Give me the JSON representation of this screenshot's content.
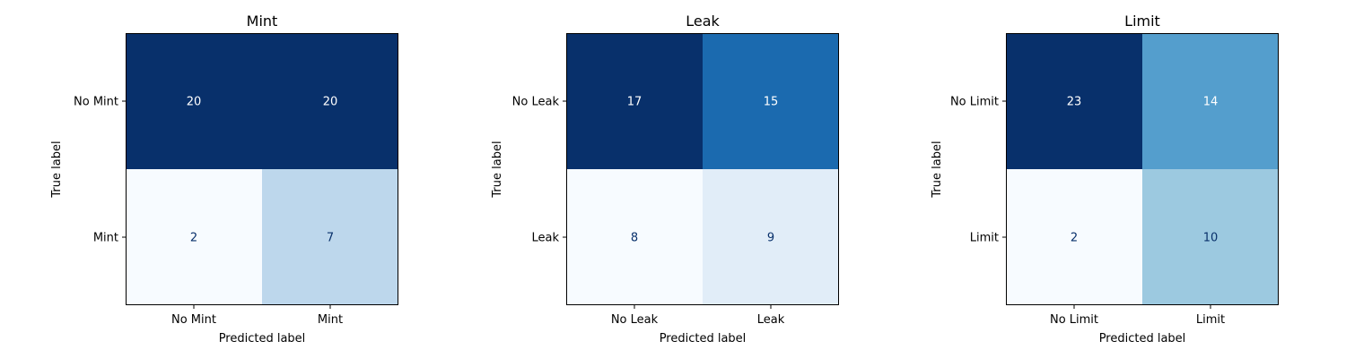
{
  "chart_data": [
    {
      "type": "heatmap",
      "title": "Mint",
      "xlabel": "Predicted label",
      "ylabel": "True label",
      "x_categories": [
        "No Mint",
        "Mint"
      ],
      "y_categories": [
        "No Mint",
        "Mint"
      ],
      "values": [
        [
          20,
          20
        ],
        [
          2,
          7
        ]
      ],
      "colormap": "Blues",
      "low_text_color": "#08306b",
      "high_text_color": "#ffffff"
    },
    {
      "type": "heatmap",
      "title": "Leak",
      "xlabel": "Predicted label",
      "ylabel": "True label",
      "x_categories": [
        "No Leak",
        "Leak"
      ],
      "y_categories": [
        "No Leak",
        "Leak"
      ],
      "values": [
        [
          17,
          15
        ],
        [
          8,
          9
        ]
      ],
      "colormap": "Blues",
      "low_text_color": "#08306b",
      "high_text_color": "#ffffff"
    },
    {
      "type": "heatmap",
      "title": "Limit",
      "xlabel": "Predicted label",
      "ylabel": "True label",
      "x_categories": [
        "No Limit",
        "Limit"
      ],
      "y_categories": [
        "No Limit",
        "Limit"
      ],
      "values": [
        [
          23,
          14
        ],
        [
          2,
          10
        ]
      ],
      "colormap": "Blues",
      "low_text_color": "#08306b",
      "high_text_color": "#ffffff"
    }
  ]
}
